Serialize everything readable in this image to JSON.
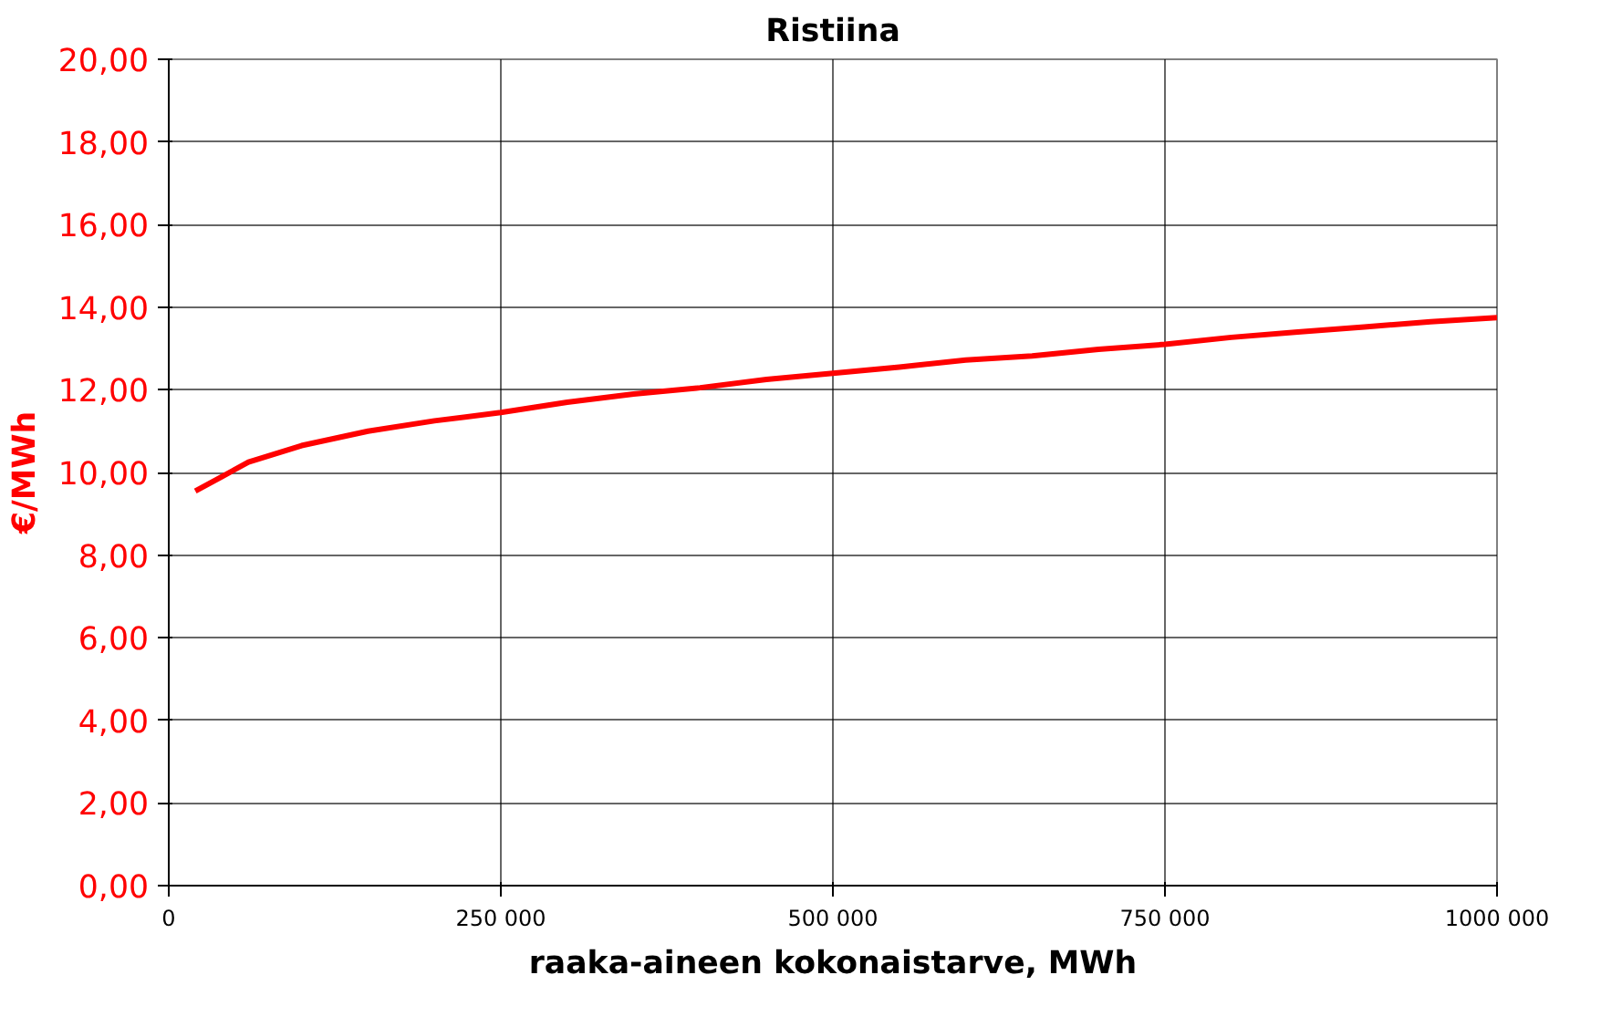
{
  "chart_data": {
    "type": "line",
    "title": "Ristiina",
    "xlabel": "raaka-aineen kokonaistarve, MWh",
    "ylabel": "€/MWh",
    "x": [
      20000,
      40000,
      60000,
      100000,
      150000,
      200000,
      250000,
      300000,
      350000,
      400000,
      450000,
      500000,
      550000,
      600000,
      650000,
      700000,
      750000,
      800000,
      850000,
      900000,
      950000,
      1000000
    ],
    "series": [
      {
        "color": "#ff0000",
        "values": [
          9.55,
          9.9,
          10.25,
          10.65,
          11.0,
          11.25,
          11.45,
          11.7,
          11.9,
          12.05,
          12.25,
          12.4,
          12.55,
          12.72,
          12.82,
          12.98,
          13.1,
          13.27,
          13.4,
          13.52,
          13.65,
          13.75
        ]
      }
    ],
    "xlim": [
      0,
      1000000
    ],
    "ylim": [
      0,
      20
    ],
    "xticks": [
      0,
      {
        "value": 250000,
        "label": "250 000"
      },
      {
        "value": 500000,
        "label": "500 000"
      },
      {
        "value": 750000,
        "label": "750 000"
      },
      {
        "value": 1000000,
        "label": "1000 000"
      }
    ],
    "yticks": [
      {
        "value": 0,
        "label": "0,00"
      },
      {
        "value": 2,
        "label": "2,00"
      },
      {
        "value": 4,
        "label": "4,00"
      },
      {
        "value": 6,
        "label": "6,00"
      },
      {
        "value": 8,
        "label": "8,00"
      },
      {
        "value": 10,
        "label": "10,00"
      },
      {
        "value": 12,
        "label": "12,00"
      },
      {
        "value": 14,
        "label": "14,00"
      },
      {
        "value": 16,
        "label": "16,00"
      },
      {
        "value": 18,
        "label": "18,00"
      },
      {
        "value": 20,
        "label": "20,00"
      }
    ],
    "grid": true,
    "marker": "none",
    "line_style": "solid"
  }
}
